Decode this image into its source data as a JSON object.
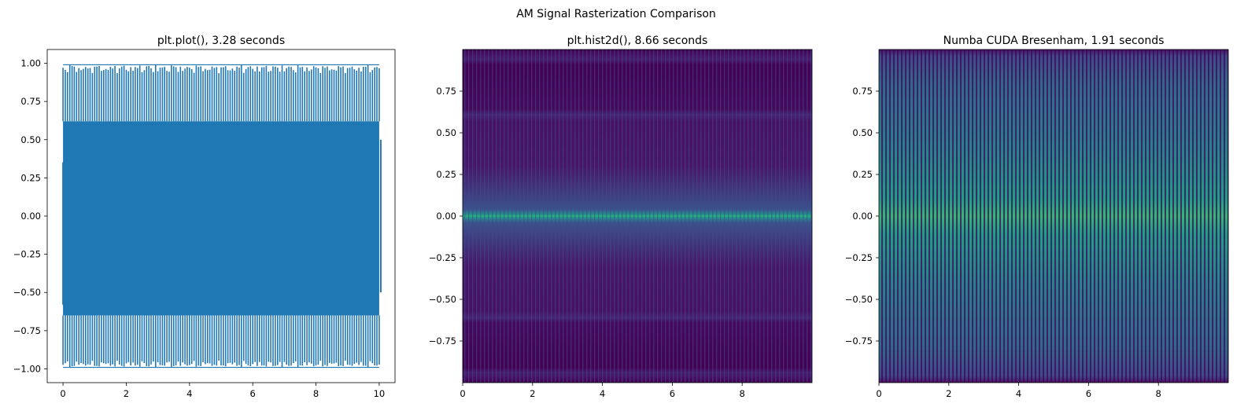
{
  "figure": {
    "suptitle": "AM Signal Rasterization Comparison"
  },
  "chart_data": [
    {
      "type": "line",
      "title": "plt.plot(), 3.28 seconds",
      "xlabel": "",
      "ylabel": "",
      "xlim": [
        -0.5,
        10.5
      ],
      "ylim": [
        -1.09,
        1.09
      ],
      "xticks": [
        0,
        2,
        4,
        6,
        8,
        10
      ],
      "yticks": [
        -1.0,
        -0.75,
        -0.5,
        -0.25,
        0.0,
        0.25,
        0.5,
        0.75,
        1.0
      ],
      "ytick_labels": [
        "−1.00",
        "−0.75",
        "−0.50",
        "−0.25",
        "0.00",
        "0.25",
        "0.50",
        "0.75",
        "1.00"
      ],
      "grid": false,
      "series": [
        {
          "color": "#1f77b4",
          "x_range": [
            0,
            10
          ],
          "envelope_max": 0.99,
          "envelope_min": -0.99,
          "dense_band": [
            -0.65,
            0.62
          ],
          "end_value": 0.5
        }
      ]
    },
    {
      "type": "heatmap",
      "title": "plt.hist2d(), 8.66 seconds",
      "xlabel": "",
      "ylabel": "",
      "xlim": [
        0,
        10
      ],
      "ylim": [
        -1.0,
        1.0
      ],
      "xticks": [
        0,
        2,
        4,
        6,
        8
      ],
      "yticks": [
        -0.75,
        -0.5,
        -0.25,
        0.0,
        0.25,
        0.5,
        0.75
      ],
      "ytick_labels": [
        "−0.75",
        "−0.50",
        "−0.25",
        "0.00",
        "0.25",
        "0.50",
        "0.75"
      ],
      "colormap": "viridis",
      "peak_row": 0.0,
      "bright_rows": [
        -0.6,
        0.6
      ],
      "background_color": "#440154"
    },
    {
      "type": "heatmap",
      "title": "Numba CUDA Bresenham, 1.91 seconds",
      "xlabel": "",
      "ylabel": "",
      "xlim": [
        0,
        10
      ],
      "ylim": [
        -1.0,
        1.0
      ],
      "xticks": [
        0,
        2,
        4,
        6,
        8
      ],
      "yticks": [
        -0.75,
        -0.5,
        -0.25,
        0.0,
        0.25,
        0.5,
        0.75
      ],
      "ytick_labels": [
        "−0.75",
        "−0.50",
        "−0.25",
        "0.00",
        "0.25",
        "0.50",
        "0.75"
      ],
      "colormap": "viridis",
      "peak_row": 0.0,
      "background_color": "#440154"
    }
  ]
}
